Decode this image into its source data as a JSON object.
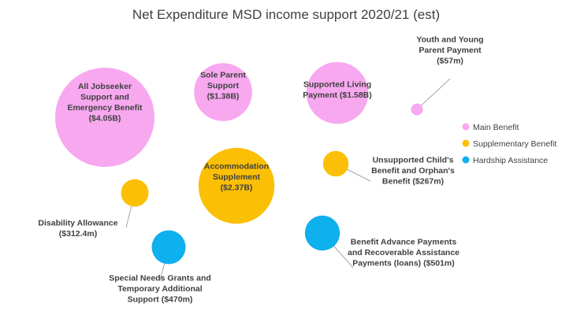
{
  "chart_data": {
    "type": "bubble",
    "title": "Net Expenditure MSD income support 2020/21 (est)",
    "xlabel": "",
    "ylabel": "",
    "categories": [
      "Main Benefit",
      "Supplementary Benefit",
      "Hardship Assistance"
    ],
    "colors": {
      "Main Benefit": "#f7a8ef",
      "Supplementary Benefit": "#fbbf06",
      "Hardship Assistance": "#0fb0ee"
    },
    "legend_position": "right",
    "points": [
      {
        "id": "jobseeker",
        "category": "Main Benefit",
        "label_lines": [
          "All Jobseeker",
          "Support and",
          "Emergency Benefit",
          "($4.05B)"
        ],
        "value_millions": 4050
      },
      {
        "id": "sole-parent",
        "category": "Main Benefit",
        "label_lines": [
          "Sole Parent",
          "Support",
          "($1.38B)"
        ],
        "value_millions": 1380
      },
      {
        "id": "supported-living",
        "category": "Main Benefit",
        "label_lines": [
          "Supported Living",
          "Payment ($1.58B)"
        ],
        "value_millions": 1580
      },
      {
        "id": "youth",
        "category": "Main Benefit",
        "label_lines": [
          "Youth and Young",
          "Parent Payment",
          "($57m)"
        ],
        "value_millions": 57
      },
      {
        "id": "accommodation",
        "category": "Supplementary Benefit",
        "label_lines": [
          "Accommodation",
          "Supplement",
          "($2.37B)"
        ],
        "value_millions": 2370
      },
      {
        "id": "unsupported-child",
        "category": "Supplementary Benefit",
        "label_lines": [
          "Unsupported Child's",
          "Benefit and Orphan's",
          "Benefit ($267m)"
        ],
        "value_millions": 267
      },
      {
        "id": "disability",
        "category": "Supplementary Benefit",
        "label_lines": [
          "Disability Allowance",
          "($312.4m)"
        ],
        "value_millions": 312.4
      },
      {
        "id": "special-needs",
        "category": "Hardship Assistance",
        "label_lines": [
          "Special Needs Grants and",
          "Temporary Additional",
          "Support ($470m)"
        ],
        "value_millions": 470
      },
      {
        "id": "advance-payments",
        "category": "Hardship Assistance",
        "label_lines": [
          "Benefit Advance Payments",
          "and Recoverable Assistance",
          "Payments (loans) ($501m)"
        ],
        "value_millions": 501
      }
    ]
  }
}
